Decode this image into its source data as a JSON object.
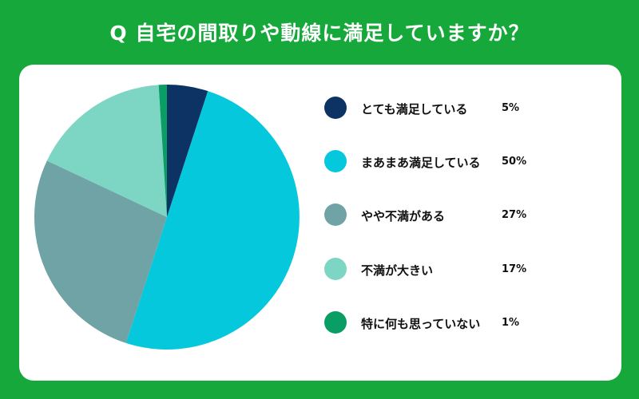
{
  "chart_data": {
    "type": "pie",
    "title": "Q 自宅の間取りや動線に満足していますか？",
    "categories": [
      "とても満足している",
      "まあまあ満足している",
      "やや不満がある",
      "不満が大きい",
      "特に何も思っていない"
    ],
    "values": [
      5,
      50,
      27,
      17,
      1
    ],
    "value_labels": [
      "5%",
      "50%",
      "27%",
      "17%",
      "1%"
    ],
    "colors": [
      "#0c3363",
      "#05c8dc",
      "#6fa3a5",
      "#7dd6c4",
      "#0a9e64"
    ],
    "legend_position": "right"
  }
}
